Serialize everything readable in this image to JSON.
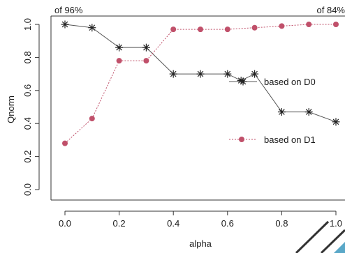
{
  "chart_data": {
    "type": "line",
    "title": "",
    "xlabel": "alpha",
    "ylabel": "Qnorm",
    "xlim": [
      -0.05,
      1.0
    ],
    "ylim": [
      0.0,
      1.0
    ],
    "grid": false,
    "legend_position": "center-right",
    "corner_labels": {
      "left": "of 96%",
      "right": "of 84%"
    },
    "x_ticks": [
      "0.0",
      "0.2",
      "0.4",
      "0.6",
      "0.8",
      "1.0"
    ],
    "x_tick_values": [
      0.0,
      0.2,
      0.4,
      0.6,
      0.8,
      1.0
    ],
    "y_ticks": [
      "0.0",
      "0.2",
      "0.4",
      "0.6",
      "0.8",
      "1.0"
    ],
    "y_tick_values": [
      0.0,
      0.2,
      0.4,
      0.6,
      0.8,
      1.0
    ],
    "series": [
      {
        "name": "based on D0",
        "marker": "asterisk",
        "line_style": "solid",
        "color": "#222222",
        "x": [
          0.0,
          0.1,
          0.2,
          0.3,
          0.4,
          0.5,
          0.6,
          0.65,
          0.7,
          0.8,
          0.9,
          1.0
        ],
        "y": [
          1.0,
          0.98,
          0.86,
          0.86,
          0.7,
          0.7,
          0.7,
          0.66,
          0.7,
          0.47,
          0.47,
          0.41
        ]
      },
      {
        "name": "based on D1",
        "marker": "circle",
        "line_style": "dotted",
        "color": "#c0506a",
        "x": [
          0.0,
          0.1,
          0.2,
          0.3,
          0.4,
          0.5,
          0.6,
          0.7,
          0.8,
          0.9,
          1.0
        ],
        "y": [
          0.28,
          0.43,
          0.78,
          0.78,
          0.97,
          0.97,
          0.97,
          0.98,
          0.99,
          1.0,
          1.0
        ]
      }
    ]
  }
}
